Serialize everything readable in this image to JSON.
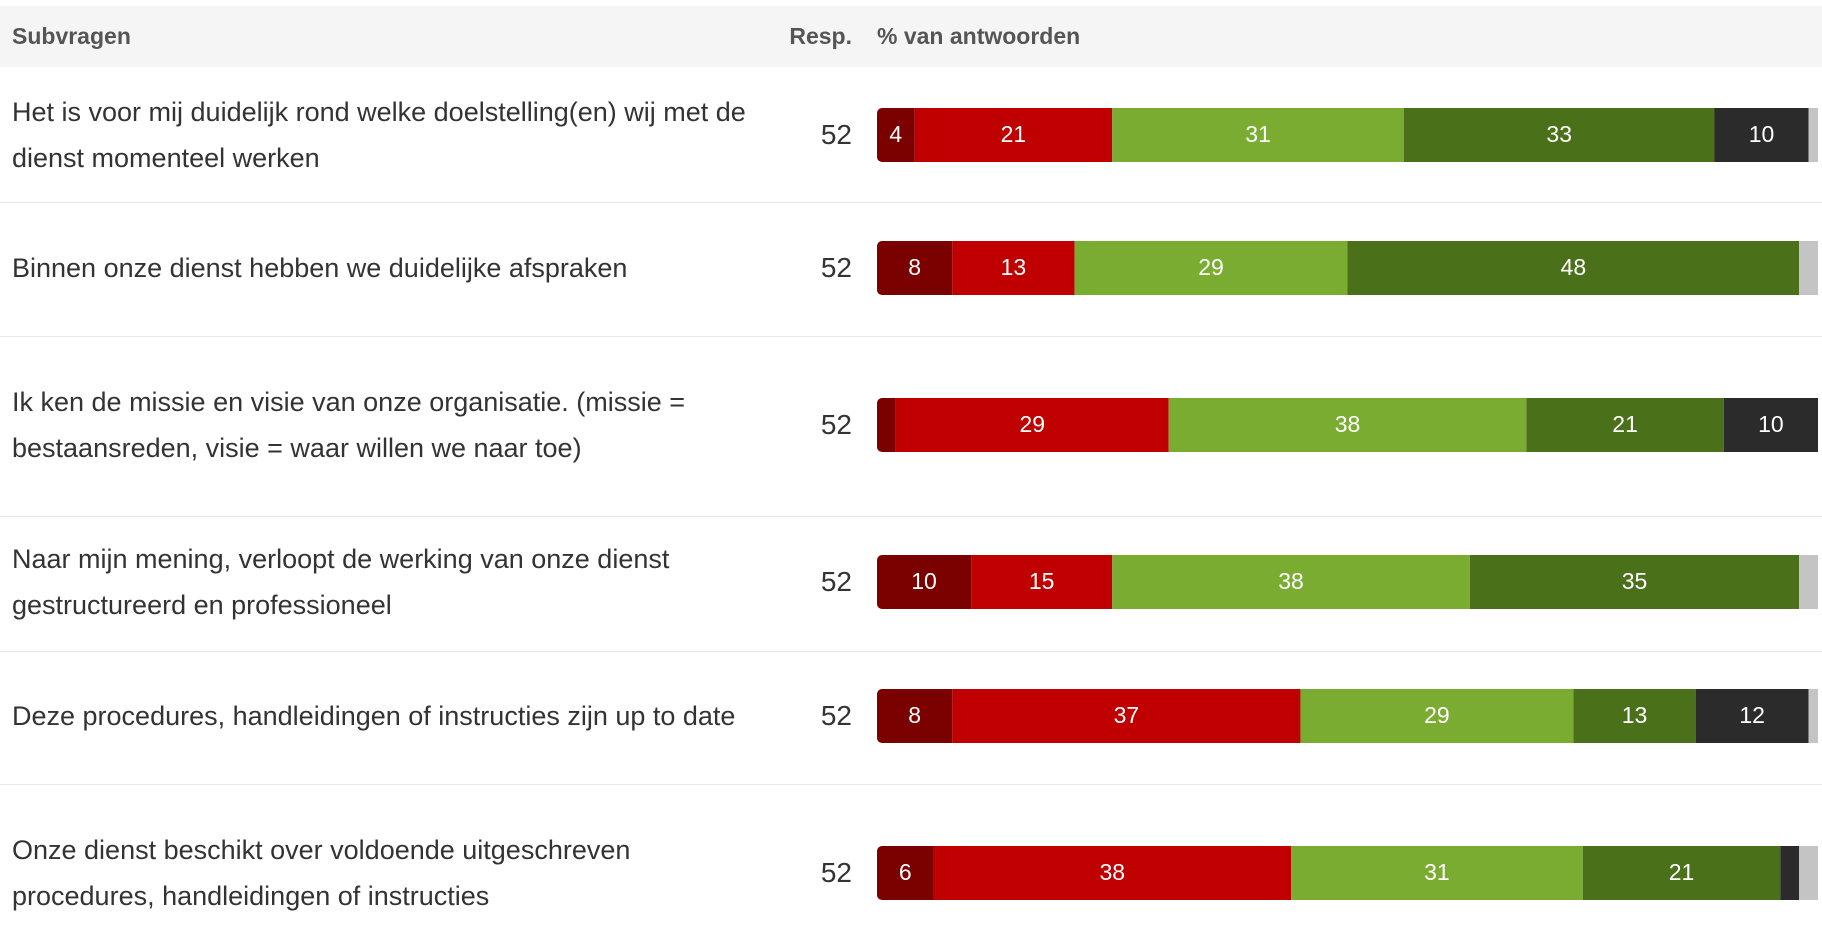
{
  "chart_data": {
    "type": "stacked-bar",
    "headers": [
      "Subvragen",
      "Resp.",
      "% van antwoorden"
    ],
    "categories": [
      "Het is voor mij duidelijk rond welke doelstelling(en) wij met de dienst momenteel werken",
      "Binnen onze dienst hebben we duidelijke afspraken",
      "Ik ken de missie en visie van onze organisatie. (missie = bestaansreden, visie = waar willen we naar toe)",
      "Naar mijn mening, verloopt de werking van onze dienst gestructureerd en professioneel",
      "Deze procedures, handleidingen of instructies zijn up to date",
      "Onze dienst beschikt over voldoende uitgeschreven procedures, handleidingen of instructies"
    ],
    "responses": [
      52,
      52,
      52,
      52,
      52,
      52
    ],
    "xlim": [
      0,
      100
    ],
    "series": [
      {
        "color": "#7b0000",
        "values": [
          4,
          8,
          2,
          10,
          8,
          6
        ],
        "value_labels": [
          "4",
          "8",
          null,
          "10",
          "8",
          "6"
        ]
      },
      {
        "color": "#c00000",
        "values": [
          21,
          13,
          29,
          15,
          37,
          38
        ],
        "value_labels": [
          "21",
          "13",
          "29",
          "15",
          "37",
          "38"
        ]
      },
      {
        "color": "#7aac32",
        "values": [
          31,
          29,
          38,
          38,
          29,
          31
        ],
        "value_labels": [
          "31",
          "29",
          "38",
          "38",
          "29",
          "31"
        ]
      },
      {
        "color": "#4a7019",
        "values": [
          33,
          48,
          21,
          35,
          13,
          21
        ],
        "value_labels": [
          "33",
          "48",
          "21",
          "35",
          "13",
          "21"
        ]
      },
      {
        "color": "#2b2b2b",
        "values": [
          10,
          null,
          10,
          null,
          12,
          2
        ],
        "value_labels": [
          "10",
          null,
          "10",
          null,
          "12",
          null
        ]
      },
      {
        "color": "#c4c4c4",
        "values": [
          1,
          2,
          null,
          2,
          1,
          2
        ],
        "value_labels": [
          null,
          null,
          null,
          null,
          null,
          null
        ]
      }
    ]
  }
}
